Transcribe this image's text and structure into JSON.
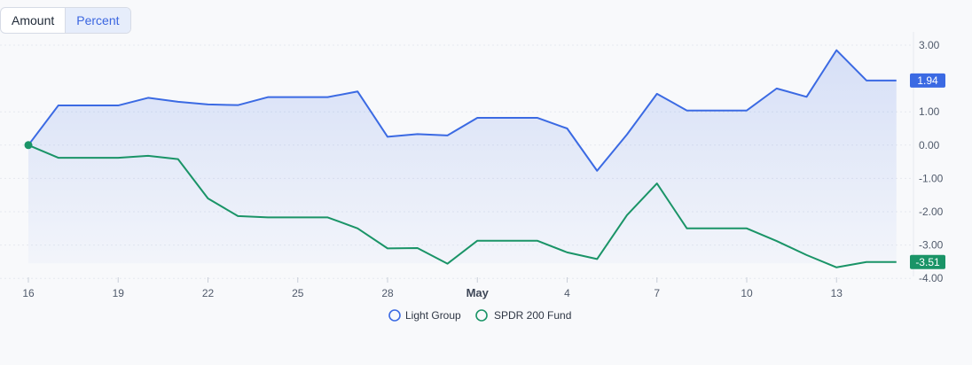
{
  "toggle": {
    "amount_label": "Amount",
    "percent_label": "Percent",
    "selected": "Percent"
  },
  "chart_data": {
    "type": "line",
    "x": [
      "Apr 16",
      "Apr 17",
      "Apr 18",
      "Apr 19",
      "Apr 20",
      "Apr 21",
      "Apr 22",
      "Apr 23",
      "Apr 24",
      "Apr 25",
      "Apr 26",
      "Apr 27",
      "Apr 28",
      "Apr 29",
      "Apr 30",
      "May 1",
      "May 2",
      "May 3",
      "May 4",
      "May 5",
      "May 6",
      "May 7",
      "May 8",
      "May 9",
      "May 10",
      "May 11",
      "May 12",
      "May 13",
      "May 14",
      "May 15"
    ],
    "x_tick_labels": [
      "16",
      "19",
      "22",
      "25",
      "28",
      "May",
      "4",
      "7",
      "10",
      "13"
    ],
    "y_tick_labels": [
      "3.00",
      "1.00",
      "0.00",
      "-1.00",
      "-2.00",
      "-3.00",
      "-4.00"
    ],
    "ylim": [
      -4,
      3
    ],
    "series": [
      {
        "name": "Light Group",
        "color": "#3b6ae3",
        "last_label": "1.94",
        "values": [
          0.0,
          1.19,
          1.19,
          1.19,
          1.42,
          1.3,
          1.22,
          1.2,
          1.44,
          1.44,
          1.44,
          1.61,
          0.25,
          0.33,
          0.29,
          0.82,
          0.82,
          0.82,
          0.5,
          -0.77,
          0.32,
          1.54,
          1.04,
          1.04,
          1.04,
          1.7,
          1.45,
          2.85,
          1.94,
          1.94
        ]
      },
      {
        "name": "SPDR 200 Fund",
        "color": "#1a9467",
        "last_label": "-3.51",
        "values": [
          0.0,
          -0.38,
          -0.38,
          -0.38,
          -0.32,
          -0.42,
          -1.6,
          -2.13,
          -2.17,
          -2.17,
          -2.17,
          -2.5,
          -3.1,
          -3.09,
          -3.56,
          -2.87,
          -2.87,
          -2.87,
          -3.22,
          -3.42,
          -2.1,
          -1.15,
          -2.5,
          -2.5,
          -2.5,
          -2.88,
          -3.3,
          -3.67,
          -3.51,
          -3.51
        ]
      }
    ],
    "area_fill_series": "Light Group",
    "legend_position": "bottom-center",
    "grid": true
  }
}
